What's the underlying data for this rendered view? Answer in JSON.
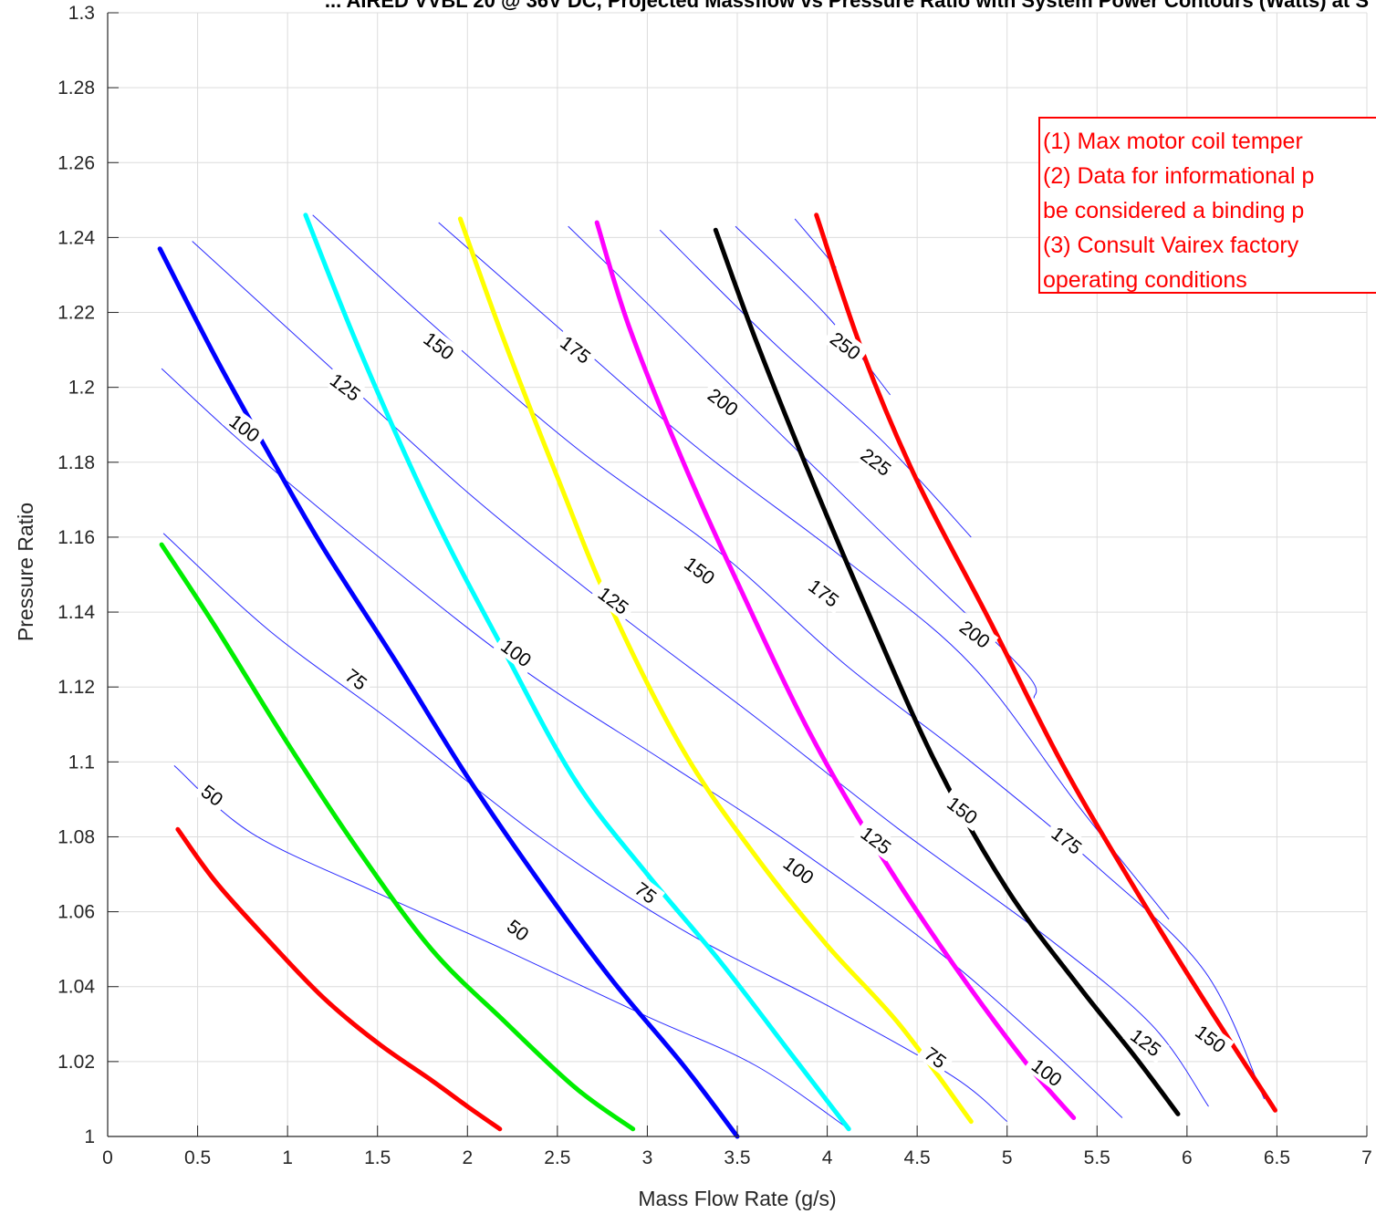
{
  "chart_data": {
    "type": "line",
    "title": "... AIRED VVBL 20 @ 36V DC, Projected Massflow vs Pressure Ratio with System Power Contours (Watts) at S",
    "xlabel": "Mass Flow Rate (g/s)",
    "ylabel": "Pressure Ratio",
    "xlim": [
      0,
      7
    ],
    "ylim": [
      1,
      1.3
    ],
    "x_ticks": [
      "0",
      "0.5",
      "1",
      "1.5",
      "2",
      "2.5",
      "3",
      "3.5",
      "4",
      "4.5",
      "5",
      "5.5",
      "6",
      "6.5",
      "7"
    ],
    "y_ticks": [
      "1",
      "1.02",
      "1.04",
      "1.06",
      "1.08",
      "1.1",
      "1.12",
      "1.14",
      "1.16",
      "1.18",
      "1.2",
      "1.22",
      "1.24",
      "1.26",
      "1.28",
      "1.3"
    ],
    "grid": true,
    "speed_lines": [
      {
        "color": "#ff0000",
        "points": [
          [
            0.39,
            1.082
          ],
          [
            0.6,
            1.068
          ],
          [
            0.9,
            1.052
          ],
          [
            1.2,
            1.037
          ],
          [
            1.5,
            1.025
          ],
          [
            1.8,
            1.015
          ],
          [
            2.0,
            1.008
          ],
          [
            2.18,
            1.002
          ]
        ]
      },
      {
        "color": "#00ee00",
        "points": [
          [
            0.3,
            1.158
          ],
          [
            0.6,
            1.136
          ],
          [
            1.0,
            1.105
          ],
          [
            1.4,
            1.076
          ],
          [
            1.8,
            1.05
          ],
          [
            2.2,
            1.031
          ],
          [
            2.6,
            1.013
          ],
          [
            2.92,
            1.002
          ]
        ]
      },
      {
        "color": "#0000ff",
        "points": [
          [
            0.29,
            1.237
          ],
          [
            0.6,
            1.208
          ],
          [
            0.9,
            1.182
          ],
          [
            1.2,
            1.157
          ],
          [
            1.6,
            1.127
          ],
          [
            2.0,
            1.096
          ],
          [
            2.4,
            1.068
          ],
          [
            2.8,
            1.042
          ],
          [
            3.2,
            1.019
          ],
          [
            3.5,
            1.0
          ]
        ]
      },
      {
        "color": "#00ffff",
        "points": [
          [
            1.1,
            1.246
          ],
          [
            1.4,
            1.21
          ],
          [
            1.8,
            1.167
          ],
          [
            2.2,
            1.13
          ],
          [
            2.6,
            1.095
          ],
          [
            3.0,
            1.07
          ],
          [
            3.4,
            1.047
          ],
          [
            3.8,
            1.022
          ],
          [
            4.12,
            1.002
          ]
        ]
      },
      {
        "color": "#ffff00",
        "points": [
          [
            1.96,
            1.245
          ],
          [
            2.2,
            1.213
          ],
          [
            2.5,
            1.176
          ],
          [
            2.8,
            1.141
          ],
          [
            3.2,
            1.103
          ],
          [
            3.6,
            1.075
          ],
          [
            4.0,
            1.051
          ],
          [
            4.4,
            1.03
          ],
          [
            4.8,
            1.004
          ]
        ]
      },
      {
        "color": "#ff00ff",
        "points": [
          [
            2.72,
            1.244
          ],
          [
            2.9,
            1.216
          ],
          [
            3.2,
            1.18
          ],
          [
            3.5,
            1.148
          ],
          [
            3.9,
            1.108
          ],
          [
            4.3,
            1.075
          ],
          [
            4.7,
            1.046
          ],
          [
            5.1,
            1.02
          ],
          [
            5.37,
            1.005
          ]
        ]
      },
      {
        "color": "#000000",
        "points": [
          [
            3.38,
            1.242
          ],
          [
            3.6,
            1.213
          ],
          [
            3.9,
            1.177
          ],
          [
            4.2,
            1.143
          ],
          [
            4.6,
            1.1
          ],
          [
            5.0,
            1.066
          ],
          [
            5.4,
            1.04
          ],
          [
            5.7,
            1.022
          ],
          [
            5.95,
            1.006
          ]
        ]
      },
      {
        "color": "#ff0000",
        "points": [
          [
            3.94,
            1.246
          ],
          [
            4.2,
            1.209
          ],
          [
            4.5,
            1.175
          ],
          [
            4.9,
            1.138
          ],
          [
            5.3,
            1.1
          ],
          [
            5.7,
            1.067
          ],
          [
            6.1,
            1.036
          ],
          [
            6.49,
            1.007
          ]
        ]
      }
    ],
    "contours": [
      {
        "label": "50",
        "points": [
          [
            0.37,
            1.099
          ],
          [
            0.8,
            1.081
          ],
          [
            1.5,
            1.065
          ],
          [
            2.2,
            1.05
          ],
          [
            3.0,
            1.032
          ],
          [
            3.6,
            1.019
          ],
          [
            4.12,
            1.002
          ]
        ]
      },
      {
        "label": "75",
        "points": [
          [
            0.31,
            1.161
          ],
          [
            0.9,
            1.135
          ],
          [
            1.6,
            1.11
          ],
          [
            2.4,
            1.08
          ],
          [
            3.2,
            1.055
          ],
          [
            4.0,
            1.035
          ],
          [
            4.7,
            1.016
          ],
          [
            5.0,
            1.004
          ]
        ]
      },
      {
        "label": "100",
        "points": [
          [
            0.3,
            1.205
          ],
          [
            0.8,
            1.183
          ],
          [
            1.5,
            1.155
          ],
          [
            2.3,
            1.125
          ],
          [
            3.1,
            1.1
          ],
          [
            3.8,
            1.078
          ],
          [
            4.6,
            1.05
          ],
          [
            5.2,
            1.025
          ],
          [
            5.64,
            1.005
          ]
        ]
      },
      {
        "label": "125",
        "points": [
          [
            0.47,
            1.239
          ],
          [
            1.2,
            1.207
          ],
          [
            2.0,
            1.172
          ],
          [
            2.8,
            1.141
          ],
          [
            3.6,
            1.112
          ],
          [
            4.4,
            1.082
          ],
          [
            5.2,
            1.054
          ],
          [
            5.8,
            1.03
          ],
          [
            6.12,
            1.008
          ]
        ]
      },
      {
        "label": "150",
        "points": [
          [
            1.14,
            1.246
          ],
          [
            1.8,
            1.217
          ],
          [
            2.6,
            1.184
          ],
          [
            3.4,
            1.156
          ],
          [
            4.1,
            1.126
          ],
          [
            4.8,
            1.1
          ],
          [
            5.5,
            1.072
          ],
          [
            6.1,
            1.044
          ],
          [
            6.43,
            1.01
          ]
        ]
      },
      {
        "label": "175",
        "points": [
          [
            1.84,
            1.244
          ],
          [
            2.6,
            1.212
          ],
          [
            3.3,
            1.183
          ],
          [
            4.1,
            1.154
          ],
          [
            4.8,
            1.126
          ],
          [
            5.4,
            1.088
          ],
          [
            5.9,
            1.058
          ]
        ]
      },
      {
        "label": "200",
        "points": [
          [
            2.56,
            1.243
          ],
          [
            3.2,
            1.213
          ],
          [
            3.9,
            1.18
          ],
          [
            4.5,
            1.152
          ],
          [
            5.1,
            1.124
          ],
          [
            5.15,
            1.117
          ]
        ]
      },
      {
        "label": "225",
        "points": [
          [
            3.07,
            1.242
          ],
          [
            3.7,
            1.212
          ],
          [
            4.3,
            1.186
          ],
          [
            4.8,
            1.16
          ]
        ]
      },
      {
        "label": "250",
        "points": [
          [
            3.49,
            1.243
          ],
          [
            4.0,
            1.219
          ],
          [
            4.35,
            1.198
          ]
        ]
      },
      {
        "label": "",
        "points": [
          [
            3.82,
            1.245
          ],
          [
            4.05,
            1.232
          ]
        ]
      }
    ],
    "contour_labels": [
      {
        "text": "50",
        "x": 0.58,
        "y": 1.091
      },
      {
        "text": "75",
        "x": 1.38,
        "y": 1.122
      },
      {
        "text": "100",
        "x": 0.76,
        "y": 1.189
      },
      {
        "text": "125",
        "x": 1.32,
        "y": 1.2
      },
      {
        "text": "150",
        "x": 1.84,
        "y": 1.211
      },
      {
        "text": "175",
        "x": 2.6,
        "y": 1.21
      },
      {
        "text": "200",
        "x": 3.42,
        "y": 1.196
      },
      {
        "text": "250",
        "x": 4.1,
        "y": 1.211
      },
      {
        "text": "225",
        "x": 4.27,
        "y": 1.18
      },
      {
        "text": "150",
        "x": 3.29,
        "y": 1.151
      },
      {
        "text": "125",
        "x": 2.81,
        "y": 1.143
      },
      {
        "text": "175",
        "x": 3.98,
        "y": 1.145
      },
      {
        "text": "200",
        "x": 4.82,
        "y": 1.134
      },
      {
        "text": "100",
        "x": 2.27,
        "y": 1.129
      },
      {
        "text": "75",
        "x": 2.99,
        "y": 1.065
      },
      {
        "text": "50",
        "x": 2.28,
        "y": 1.055
      },
      {
        "text": "100",
        "x": 3.84,
        "y": 1.071
      },
      {
        "text": "125",
        "x": 4.27,
        "y": 1.079
      },
      {
        "text": "150",
        "x": 4.75,
        "y": 1.087
      },
      {
        "text": "175",
        "x": 5.33,
        "y": 1.079
      },
      {
        "text": "75",
        "x": 4.6,
        "y": 1.021
      },
      {
        "text": "100",
        "x": 5.22,
        "y": 1.017
      },
      {
        "text": "125",
        "x": 5.77,
        "y": 1.025
      },
      {
        "text": "150",
        "x": 6.13,
        "y": 1.026
      }
    ]
  },
  "notes": [
    "(1) Max motor coil temper",
    "(2) Data for informational p",
    "be considered a binding p",
    "(3) Consult Vairex factory",
    "operating conditions"
  ]
}
